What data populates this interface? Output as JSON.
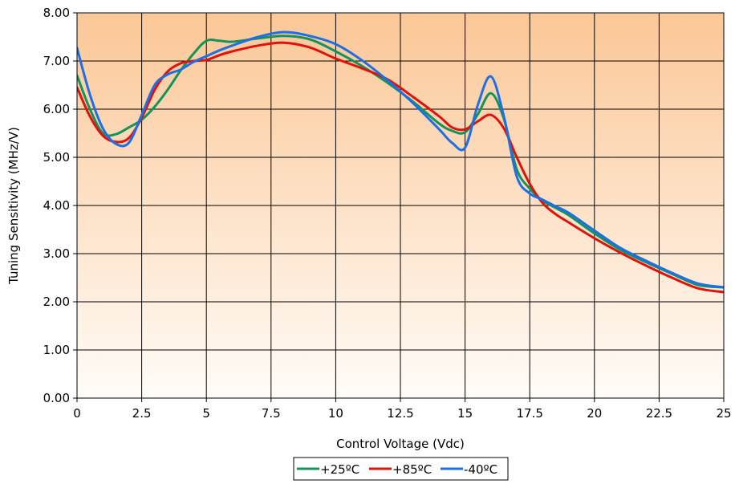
{
  "chart_data": {
    "type": "line",
    "xlabel": "Control Voltage (Vdc)",
    "ylabel": "Tuning Sensitivity (MHz/V)",
    "xlim": [
      0,
      25
    ],
    "ylim": [
      0,
      8
    ],
    "x_ticks": [
      "0",
      "2.5",
      "5",
      "7.5",
      "10",
      "12.5",
      "15",
      "17.5",
      "20",
      "22.5",
      "25"
    ],
    "y_ticks": [
      "0.00",
      "1.00",
      "2.00",
      "3.00",
      "4.00",
      "5.00",
      "6.00",
      "7.00",
      "8.00"
    ],
    "grid": true,
    "legend_position": "bottom",
    "background_gradient": [
      "#fbc796",
      "#fffcf8"
    ],
    "series": [
      {
        "name": "+25ºC",
        "color": "#14935a",
        "points": [
          [
            0,
            6.7
          ],
          [
            0.5,
            6.0
          ],
          [
            1,
            5.5
          ],
          [
            1.5,
            5.48
          ],
          [
            2,
            5.62
          ],
          [
            2.5,
            5.78
          ],
          [
            3,
            6.05
          ],
          [
            3.5,
            6.4
          ],
          [
            4,
            6.8
          ],
          [
            4.5,
            7.15
          ],
          [
            5,
            7.42
          ],
          [
            5.5,
            7.42
          ],
          [
            6,
            7.4
          ],
          [
            7,
            7.47
          ],
          [
            8,
            7.52
          ],
          [
            9,
            7.45
          ],
          [
            10,
            7.2
          ],
          [
            11,
            6.9
          ],
          [
            12,
            6.55
          ],
          [
            13,
            6.15
          ],
          [
            14,
            5.7
          ],
          [
            14.5,
            5.55
          ],
          [
            15,
            5.52
          ],
          [
            15.5,
            5.9
          ],
          [
            16,
            6.33
          ],
          [
            16.5,
            5.8
          ],
          [
            17,
            4.75
          ],
          [
            17.5,
            4.35
          ],
          [
            18,
            4.1
          ],
          [
            18.5,
            3.95
          ],
          [
            19,
            3.8
          ],
          [
            20,
            3.42
          ],
          [
            21,
            3.08
          ],
          [
            22,
            2.82
          ],
          [
            23,
            2.58
          ],
          [
            24,
            2.35
          ],
          [
            25,
            2.3
          ]
        ]
      },
      {
        "name": "+85ºC",
        "color": "#e0120b",
        "points": [
          [
            0,
            6.45
          ],
          [
            0.5,
            5.85
          ],
          [
            1,
            5.45
          ],
          [
            1.5,
            5.32
          ],
          [
            2,
            5.4
          ],
          [
            2.5,
            5.82
          ],
          [
            3,
            6.4
          ],
          [
            3.5,
            6.78
          ],
          [
            4,
            6.95
          ],
          [
            4.5,
            7.0
          ],
          [
            5,
            7.02
          ],
          [
            5.5,
            7.12
          ],
          [
            6,
            7.2
          ],
          [
            7,
            7.32
          ],
          [
            8,
            7.38
          ],
          [
            9,
            7.28
          ],
          [
            10,
            7.05
          ],
          [
            11,
            6.85
          ],
          [
            12,
            6.62
          ],
          [
            13,
            6.25
          ],
          [
            14,
            5.85
          ],
          [
            14.5,
            5.62
          ],
          [
            15,
            5.58
          ],
          [
            15.5,
            5.75
          ],
          [
            16,
            5.88
          ],
          [
            16.5,
            5.6
          ],
          [
            17,
            5.0
          ],
          [
            17.5,
            4.45
          ],
          [
            18,
            4.05
          ],
          [
            18.5,
            3.82
          ],
          [
            19,
            3.65
          ],
          [
            20,
            3.32
          ],
          [
            21,
            3.02
          ],
          [
            22,
            2.75
          ],
          [
            23,
            2.5
          ],
          [
            24,
            2.28
          ],
          [
            25,
            2.2
          ]
        ]
      },
      {
        "name": "-40ºC",
        "color": "#1c6fe6",
        "points": [
          [
            0,
            7.27
          ],
          [
            0.5,
            6.3
          ],
          [
            1,
            5.6
          ],
          [
            1.5,
            5.28
          ],
          [
            2,
            5.3
          ],
          [
            2.5,
            5.88
          ],
          [
            3,
            6.5
          ],
          [
            3.5,
            6.72
          ],
          [
            4,
            6.82
          ],
          [
            4.5,
            6.98
          ],
          [
            5,
            7.1
          ],
          [
            5.5,
            7.22
          ],
          [
            6,
            7.32
          ],
          [
            7,
            7.5
          ],
          [
            8,
            7.6
          ],
          [
            9,
            7.52
          ],
          [
            10,
            7.35
          ],
          [
            11,
            7.02
          ],
          [
            12,
            6.6
          ],
          [
            13,
            6.12
          ],
          [
            14,
            5.58
          ],
          [
            14.5,
            5.3
          ],
          [
            15,
            5.2
          ],
          [
            15.5,
            6.1
          ],
          [
            16,
            6.68
          ],
          [
            16.5,
            5.85
          ],
          [
            17,
            4.6
          ],
          [
            17.5,
            4.25
          ],
          [
            18,
            4.12
          ],
          [
            18.5,
            3.98
          ],
          [
            19,
            3.85
          ],
          [
            20,
            3.48
          ],
          [
            21,
            3.12
          ],
          [
            22,
            2.85
          ],
          [
            23,
            2.6
          ],
          [
            24,
            2.38
          ],
          [
            25,
            2.3
          ]
        ]
      }
    ]
  }
}
